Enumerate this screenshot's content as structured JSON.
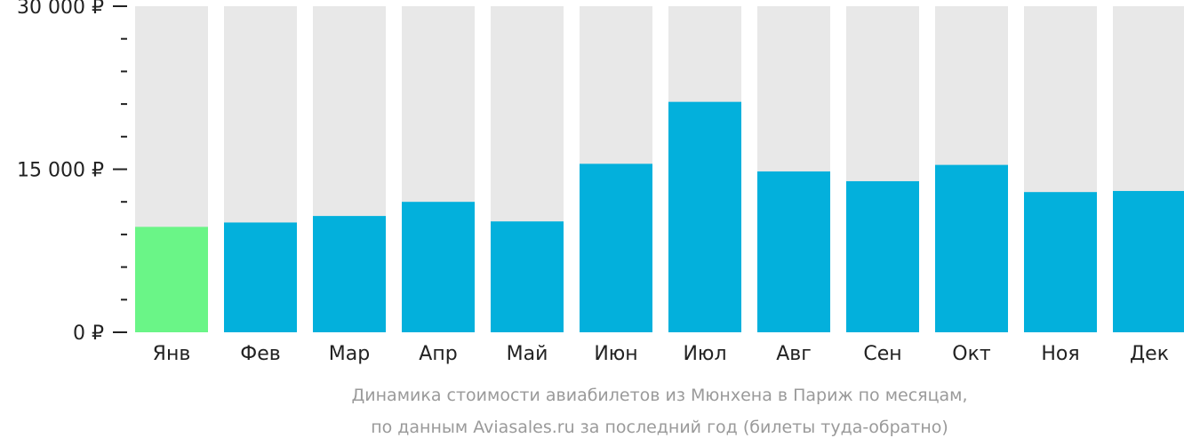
{
  "chart_data": {
    "type": "bar",
    "categories": [
      "Янв",
      "Фев",
      "Мар",
      "Апр",
      "Май",
      "Июн",
      "Июл",
      "Авг",
      "Сен",
      "Окт",
      "Ноя",
      "Дек"
    ],
    "values": [
      9700,
      10100,
      10700,
      12000,
      10200,
      15500,
      21200,
      14800,
      13900,
      15400,
      12900,
      13000
    ],
    "ylim": [
      0,
      30000
    ],
    "yticks": [
      {
        "value": 0,
        "label": "0 ₽"
      },
      {
        "value": 15000,
        "label": "15 000 ₽"
      },
      {
        "value": 30000,
        "label": "30 000 ₽"
      }
    ],
    "minor_tick_step": 3000,
    "highlight_index": 0,
    "colors": {
      "bar": "#03b0dc",
      "highlight": "#6af587",
      "background_bar": "#e8e8e8",
      "axis": "#222222"
    },
    "caption": [
      "Динамика стоимости авиабилетов из Мюнхена в Париж по месяцам,",
      "по данным Aviasales.ru за последний год (билеты туда-обратно)"
    ]
  }
}
